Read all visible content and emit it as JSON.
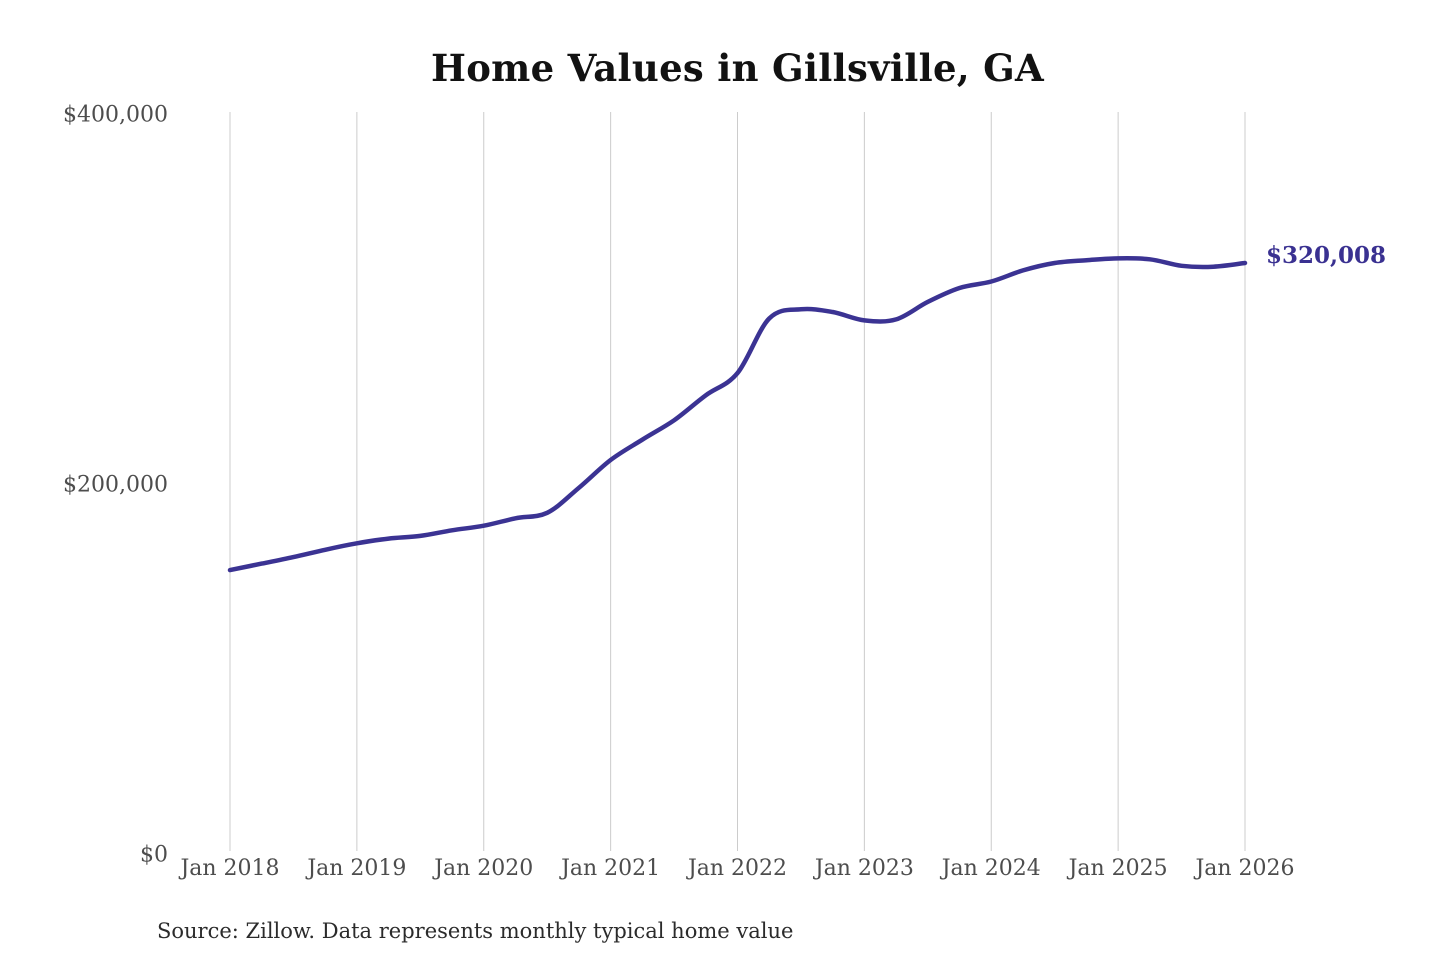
{
  "title": "Home Values in Gillsville, GA",
  "annotation": {
    "latest_value_label": "$320,008"
  },
  "source_note": "Source: Zillow. Data represents monthly typical home value",
  "colors": {
    "line": "#3b3393",
    "annotation": "#3a3191",
    "grid": "#cccccc",
    "axis_text": "#4d4d4d",
    "title_text": "#121212",
    "background": "#ffffff"
  },
  "chart_data": {
    "type": "line",
    "title": "Home Values in Gillsville, GA",
    "xlabel": "",
    "ylabel": "",
    "xlim": [
      2018,
      2026
    ],
    "ylim": [
      0,
      400000
    ],
    "grid": "vertical-only",
    "legend": "none",
    "x_ticks": [
      {
        "t": 2018,
        "label": "Jan 2018"
      },
      {
        "t": 2019,
        "label": "Jan 2019"
      },
      {
        "t": 2020,
        "label": "Jan 2020"
      },
      {
        "t": 2021,
        "label": "Jan 2021"
      },
      {
        "t": 2022,
        "label": "Jan 2022"
      },
      {
        "t": 2023,
        "label": "Jan 2023"
      },
      {
        "t": 2024,
        "label": "Jan 2024"
      },
      {
        "t": 2025,
        "label": "Jan 2025"
      },
      {
        "t": 2026,
        "label": "Jan 2026"
      }
    ],
    "y_ticks": [
      {
        "v": 0,
        "label": "$0"
      },
      {
        "v": 200000,
        "label": "$200,000"
      },
      {
        "v": 400000,
        "label": "$400,000"
      }
    ],
    "series": [
      {
        "name": "Monthly typical home value",
        "color": "#3b3393",
        "x": [
          2018.0,
          2018.25,
          2018.5,
          2018.75,
          2019.0,
          2019.25,
          2019.5,
          2019.75,
          2020.0,
          2020.25,
          2020.5,
          2020.75,
          2021.0,
          2021.25,
          2021.5,
          2021.75,
          2022.0,
          2022.25,
          2022.5,
          2022.75,
          2023.0,
          2023.25,
          2023.5,
          2023.75,
          2024.0,
          2024.25,
          2024.5,
          2024.75,
          2025.0,
          2025.25,
          2025.5,
          2025.75,
          2026.0
        ],
        "values": [
          154000,
          157500,
          161000,
          165000,
          168500,
          171000,
          172500,
          175500,
          178000,
          182000,
          185000,
          198500,
          213500,
          224500,
          235000,
          248500,
          260500,
          290000,
          295000,
          293500,
          289000,
          289500,
          299000,
          306500,
          310000,
          316000,
          320000,
          321500,
          322500,
          322000,
          318500,
          318000,
          320008
        ]
      }
    ],
    "end_label": {
      "text": "$320,008",
      "value": 320008
    }
  }
}
